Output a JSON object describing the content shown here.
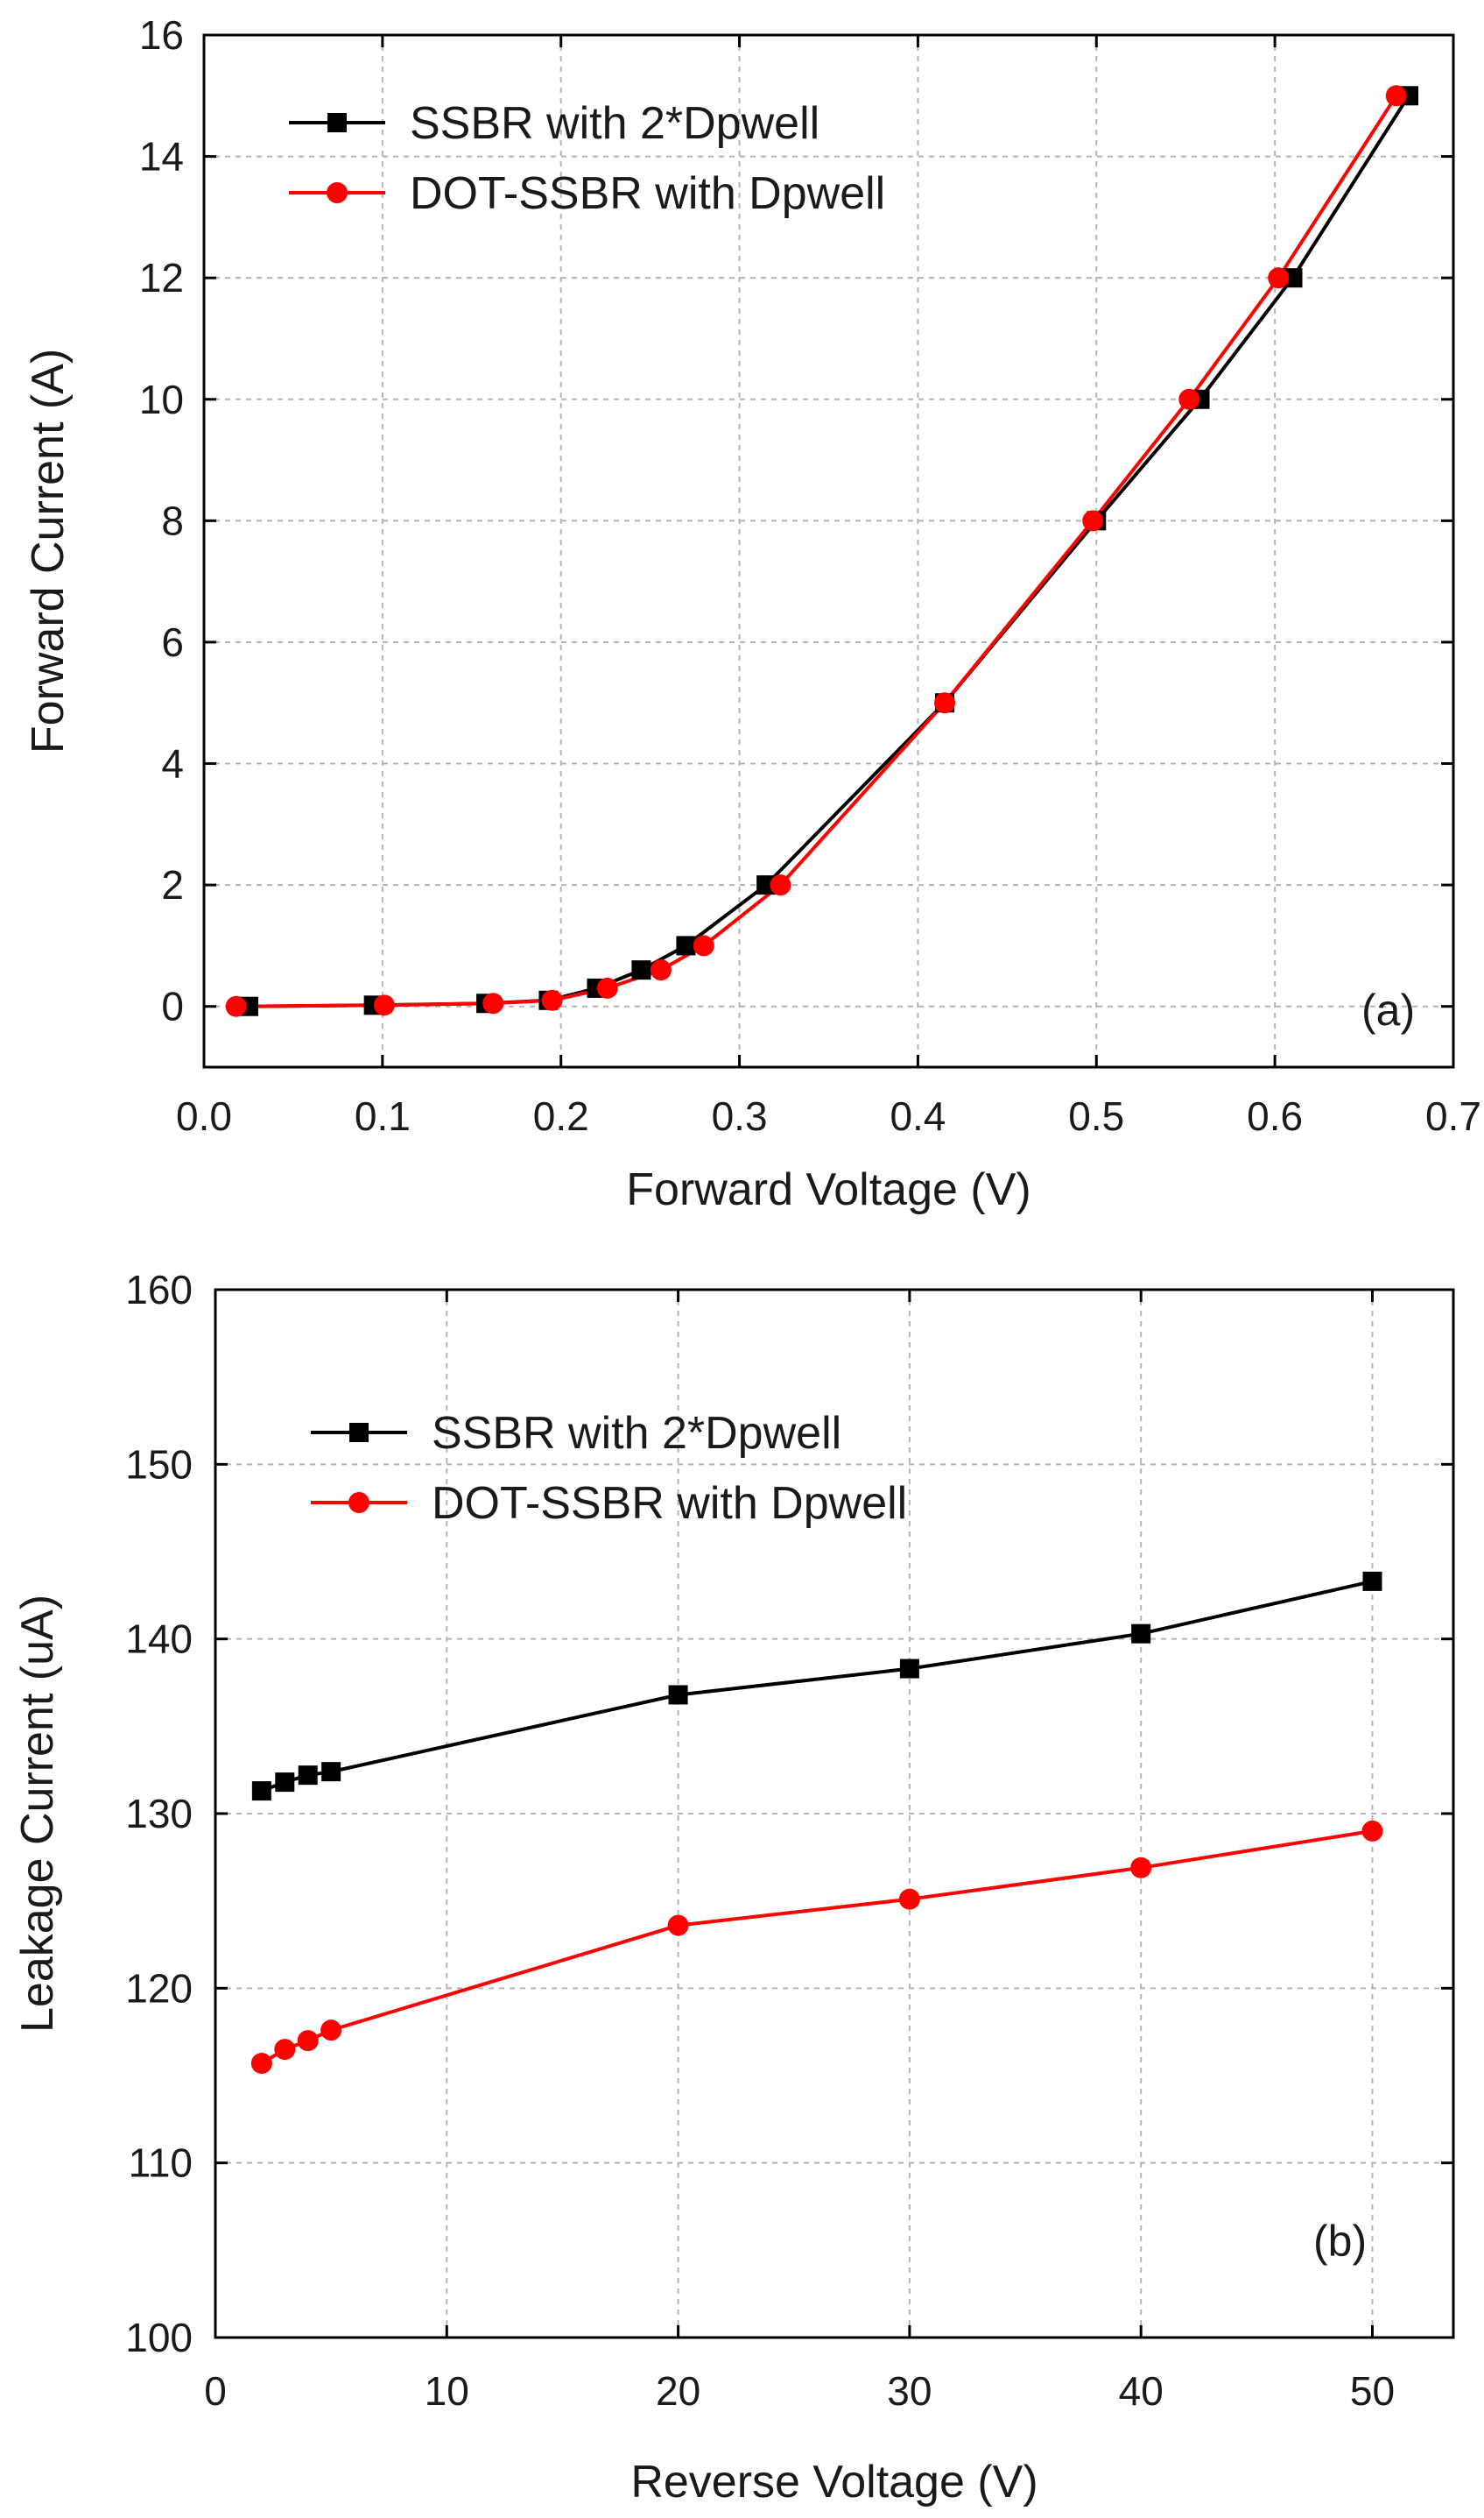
{
  "chart_data": [
    {
      "type": "line",
      "panel_label": "(a)",
      "xlabel": "Forward Voltage (V)",
      "ylabel": "Forward Current (A)",
      "xlim": [
        0.0,
        0.7
      ],
      "ylim": [
        -1,
        16
      ],
      "xticks": [
        0.0,
        0.1,
        0.2,
        0.3,
        0.4,
        0.5,
        0.6,
        0.7
      ],
      "xtick_labels": [
        "0.0",
        "0.1",
        "0.2",
        "0.3",
        "0.4",
        "0.5",
        "0.6",
        "0.7"
      ],
      "yticks": [
        0,
        2,
        4,
        6,
        8,
        10,
        12,
        14,
        16
      ],
      "ytick_labels": [
        "0",
        "2",
        "4",
        "6",
        "8",
        "10",
        "12",
        "14",
        "16"
      ],
      "grid": true,
      "legend_position": "top-left",
      "series": [
        {
          "name": "SSBR with 2*Dpwell",
          "color": "#000000",
          "marker": "square",
          "x": [
            0.025,
            0.095,
            0.158,
            0.193,
            0.22,
            0.245,
            0.27,
            0.315,
            0.415,
            0.5,
            0.558,
            0.61,
            0.675
          ],
          "y": [
            0.0,
            0.02,
            0.05,
            0.1,
            0.3,
            0.6,
            1.0,
            2.0,
            5.0,
            8.0,
            10.0,
            12.0,
            15.0
          ]
        },
        {
          "name": "DOT-SSBR with Dpwell",
          "color": "#ff0000",
          "marker": "circle",
          "x": [
            0.018,
            0.101,
            0.162,
            0.195,
            0.226,
            0.256,
            0.28,
            0.323,
            0.415,
            0.498,
            0.552,
            0.602,
            0.668
          ],
          "y": [
            0.0,
            0.02,
            0.05,
            0.1,
            0.3,
            0.6,
            1.0,
            2.0,
            5.0,
            8.0,
            10.0,
            12.0,
            15.0
          ]
        }
      ]
    },
    {
      "type": "line",
      "panel_label": "(b)",
      "xlabel": "Reverse Voltage (V)",
      "ylabel": "Leakage Current (uA)",
      "xlim": [
        0,
        53.5
      ],
      "ylim": [
        100,
        160
      ],
      "xticks": [
        0,
        10,
        20,
        30,
        40,
        50
      ],
      "xtick_labels": [
        "0",
        "10",
        "20",
        "30",
        "40",
        "50"
      ],
      "yticks": [
        100,
        110,
        120,
        130,
        140,
        150,
        160
      ],
      "ytick_labels": [
        "100",
        "110",
        "120",
        "130",
        "140",
        "150",
        "160"
      ],
      "grid": true,
      "legend_position": "top-left",
      "series": [
        {
          "name": "SSBR with 2*Dpwell",
          "color": "#000000",
          "marker": "square",
          "x": [
            2,
            3,
            4,
            5,
            20,
            30,
            40,
            50
          ],
          "y": [
            131.3,
            131.8,
            132.2,
            132.4,
            136.8,
            138.3,
            140.3,
            143.3
          ]
        },
        {
          "name": "DOT-SSBR with Dpwell",
          "color": "#ff0000",
          "marker": "circle",
          "x": [
            2,
            3,
            4,
            5,
            20,
            30,
            40,
            50
          ],
          "y": [
            115.7,
            116.5,
            117.0,
            117.6,
            123.6,
            125.1,
            126.9,
            129.0
          ]
        }
      ]
    }
  ]
}
